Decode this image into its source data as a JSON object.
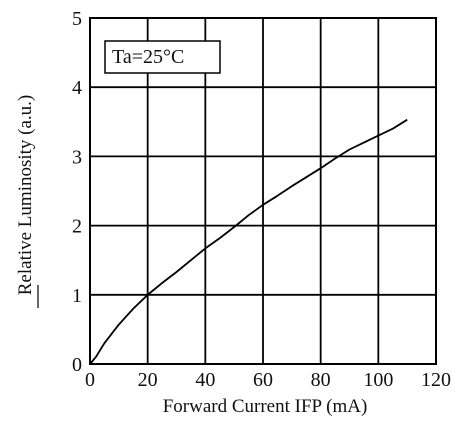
{
  "chart_data": {
    "type": "line",
    "title": "",
    "xlabel": "Forward Current  IFP (mA)",
    "ylabel": "Relative Luminosity  (a.u.)",
    "xlim": [
      0,
      120
    ],
    "ylim": [
      0,
      5
    ],
    "x_ticks": [
      "0",
      "20",
      "40",
      "60",
      "80",
      "100",
      "120"
    ],
    "y_ticks": [
      "0",
      "1",
      "2",
      "3",
      "4",
      "5"
    ],
    "grid": true,
    "annotation": "Ta=25°C",
    "series": [
      {
        "name": "",
        "color": "#000000",
        "x": [
          0,
          2,
          5,
          10,
          15,
          20,
          25,
          30,
          35,
          40,
          45,
          50,
          55,
          60,
          65,
          70,
          75,
          80,
          85,
          90,
          95,
          100,
          105,
          110
        ],
        "y": [
          0,
          0.1,
          0.3,
          0.57,
          0.8,
          1.0,
          1.17,
          1.33,
          1.5,
          1.67,
          1.82,
          1.98,
          2.15,
          2.3,
          2.43,
          2.57,
          2.7,
          2.83,
          2.97,
          3.1,
          3.2,
          3.3,
          3.4,
          3.53
        ]
      }
    ]
  }
}
